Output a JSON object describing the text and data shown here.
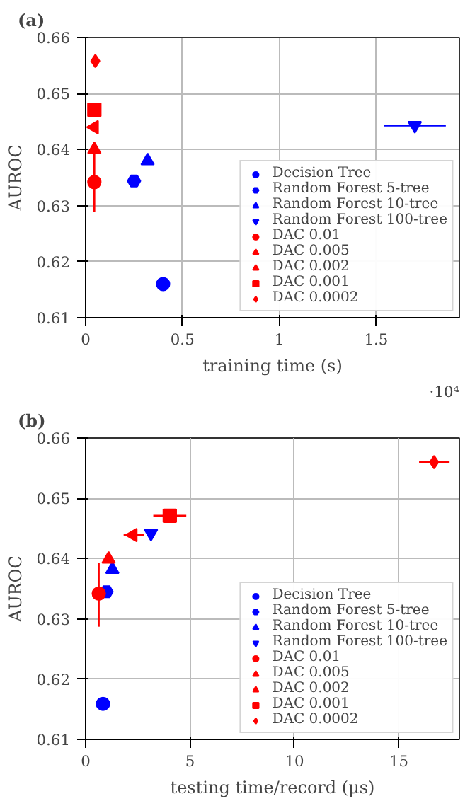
{
  "chart_data": [
    {
      "type": "scatter",
      "title": "(a)",
      "xlabel": "training time (s)",
      "ylabel": "AUROC",
      "annotations": [
        "·10⁴"
      ],
      "xlim": [
        0,
        1.93
      ],
      "ylim": [
        0.61,
        0.66
      ],
      "xticks": [
        0,
        0.5,
        1,
        1.5
      ],
      "yticks": [
        0.61,
        0.62,
        0.63,
        0.64,
        0.65,
        0.66
      ],
      "grid": true,
      "legend": "bottom right",
      "series": [
        {
          "name": "Decision Tree",
          "color": "#0000ff",
          "marker": "circle",
          "x": [
            0.4
          ],
          "values": [
            0.616
          ]
        },
        {
          "name": "Random Forest 5-tree",
          "color": "#0000ff",
          "x": [
            0.25
          ],
          "values": [
            0.6344
          ]
        },
        {
          "name": "Random Forest 10-tree",
          "color": "#0000ff",
          "marker": "triangle",
          "x": [
            0.32
          ],
          "values": [
            0.638
          ]
        },
        {
          "name": "Random Forest 100-tree",
          "color": "#0000ff",
          "marker": "triangle_down",
          "x": [
            1.7
          ],
          "values": [
            0.6443
          ],
          "xerrors": [
            [
              1.54,
              1.86
            ]
          ]
        },
        {
          "name": "DAC 0.01",
          "color": "#ff0000",
          "marker": "circle",
          "x": [
            0.045
          ],
          "values": [
            0.6342
          ],
          "errors": [
            [
              0.6289,
              0.6397
            ]
          ]
        },
        {
          "name": "DAC 0.005",
          "color": "#ff0000",
          "marker": "triangle",
          "x": [
            0.045
          ],
          "values": [
            0.64
          ]
        },
        {
          "name": "DAC 0.002",
          "color": "#ff0000",
          "marker": "triangle_left",
          "x": [
            0.045
          ],
          "values": [
            0.644
          ]
        },
        {
          "name": "DAC 0.001",
          "color": "#ff0000",
          "marker": "square",
          "x": [
            0.045
          ],
          "values": [
            0.6471
          ]
        },
        {
          "name": "DAC 0.0002",
          "color": "#ff0000",
          "marker": "diamond",
          "x": [
            0.05
          ],
          "values": [
            0.6558
          ]
        }
      ]
    },
    {
      "type": "scatter",
      "title": "(b)",
      "xlabel": "testing time/record (μs)",
      "ylabel": "AUROC",
      "xlim": [
        0,
        17.9
      ],
      "ylim": [
        0.61,
        0.66
      ],
      "xticks": [
        0,
        5,
        10,
        15
      ],
      "yticks": [
        0.61,
        0.62,
        0.63,
        0.64,
        0.65,
        0.66
      ],
      "grid": true,
      "legend": "bottom right",
      "series": [
        {
          "name": "Decision Tree",
          "color": "#0000ff",
          "marker": "circle",
          "x": [
            0.83
          ],
          "values": [
            0.6159
          ]
        },
        {
          "name": "Random Forest 5-tree",
          "color": "#0000ff",
          "x": [
            1.0
          ],
          "values": [
            0.6345
          ]
        },
        {
          "name": "Random Forest 10-tree",
          "color": "#0000ff",
          "marker": "triangle",
          "x": [
            1.28
          ],
          "values": [
            0.6382
          ]
        },
        {
          "name": "Random Forest 100-tree",
          "color": "#0000ff",
          "marker": "triangle_down",
          "x": [
            3.13
          ],
          "values": [
            0.6442
          ]
        },
        {
          "name": "DAC 0.01",
          "color": "#ff0000",
          "marker": "circle",
          "x": [
            0.63
          ],
          "values": [
            0.6342
          ],
          "errors": [
            [
              0.6287,
              0.6393
            ]
          ]
        },
        {
          "name": "DAC 0.005",
          "color": "#ff0000",
          "marker": "triangle",
          "x": [
            1.1
          ],
          "values": [
            0.6399
          ]
        },
        {
          "name": "DAC 0.002",
          "color": "#ff0000",
          "marker": "triangle_left",
          "x": [
            2.27
          ],
          "values": [
            0.6439
          ],
          "xerrors": [
            [
              1.82,
              2.79
            ]
          ]
        },
        {
          "name": "DAC 0.001",
          "color": "#ff0000",
          "marker": "square",
          "x": [
            4.03
          ],
          "values": [
            0.6471
          ],
          "xerrors": [
            [
              3.24,
              4.82
            ]
          ]
        },
        {
          "name": "DAC 0.0002",
          "color": "#ff0000",
          "marker": "diamond",
          "x": [
            16.69
          ],
          "values": [
            0.656
          ],
          "xerrors": [
            [
              15.97,
              17.43
            ]
          ]
        }
      ]
    }
  ]
}
